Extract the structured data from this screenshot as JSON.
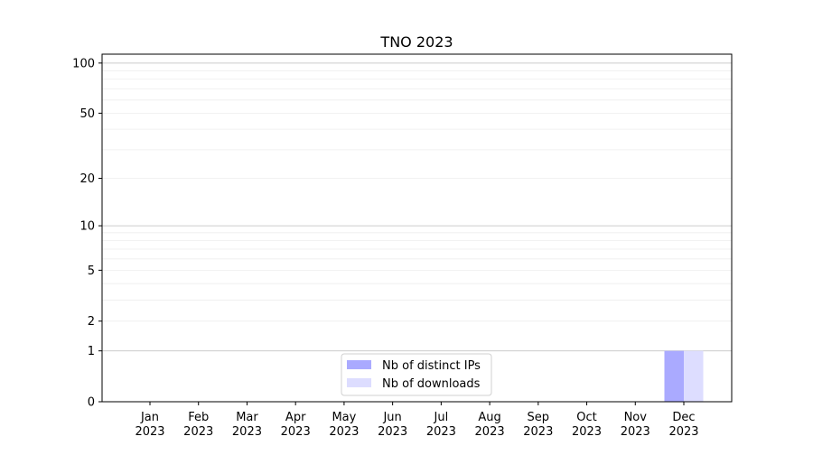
{
  "chart_data": {
    "type": "bar",
    "title": "TNO 2023",
    "xlabel": "",
    "ylabel": "",
    "yscale": "log(1+y)",
    "ylim": [
      0,
      113
    ],
    "yticks": [
      0,
      1,
      2,
      5,
      10,
      20,
      50,
      100
    ],
    "ytick_labels": [
      "0",
      "1",
      "2",
      "5",
      "10",
      "20",
      "50",
      "100"
    ],
    "grid": true,
    "categories": [
      [
        "Jan",
        "2023"
      ],
      [
        "Feb",
        "2023"
      ],
      [
        "Mar",
        "2023"
      ],
      [
        "Apr",
        "2023"
      ],
      [
        "May",
        "2023"
      ],
      [
        "Jun",
        "2023"
      ],
      [
        "Jul",
        "2023"
      ],
      [
        "Aug",
        "2023"
      ],
      [
        "Sep",
        "2023"
      ],
      [
        "Oct",
        "2023"
      ],
      [
        "Nov",
        "2023"
      ],
      [
        "Dec",
        "2023"
      ]
    ],
    "series": [
      {
        "name": "Nb of distinct IPs",
        "color": "#aaaaff",
        "values": [
          0,
          0,
          0,
          0,
          0,
          0,
          0,
          0,
          0,
          0,
          0,
          1
        ]
      },
      {
        "name": "Nb of downloads",
        "color": "#ddddff",
        "values": [
          0,
          0,
          0,
          0,
          0,
          0,
          0,
          0,
          0,
          0,
          0,
          1
        ]
      }
    ],
    "legend": "bottom-center"
  }
}
